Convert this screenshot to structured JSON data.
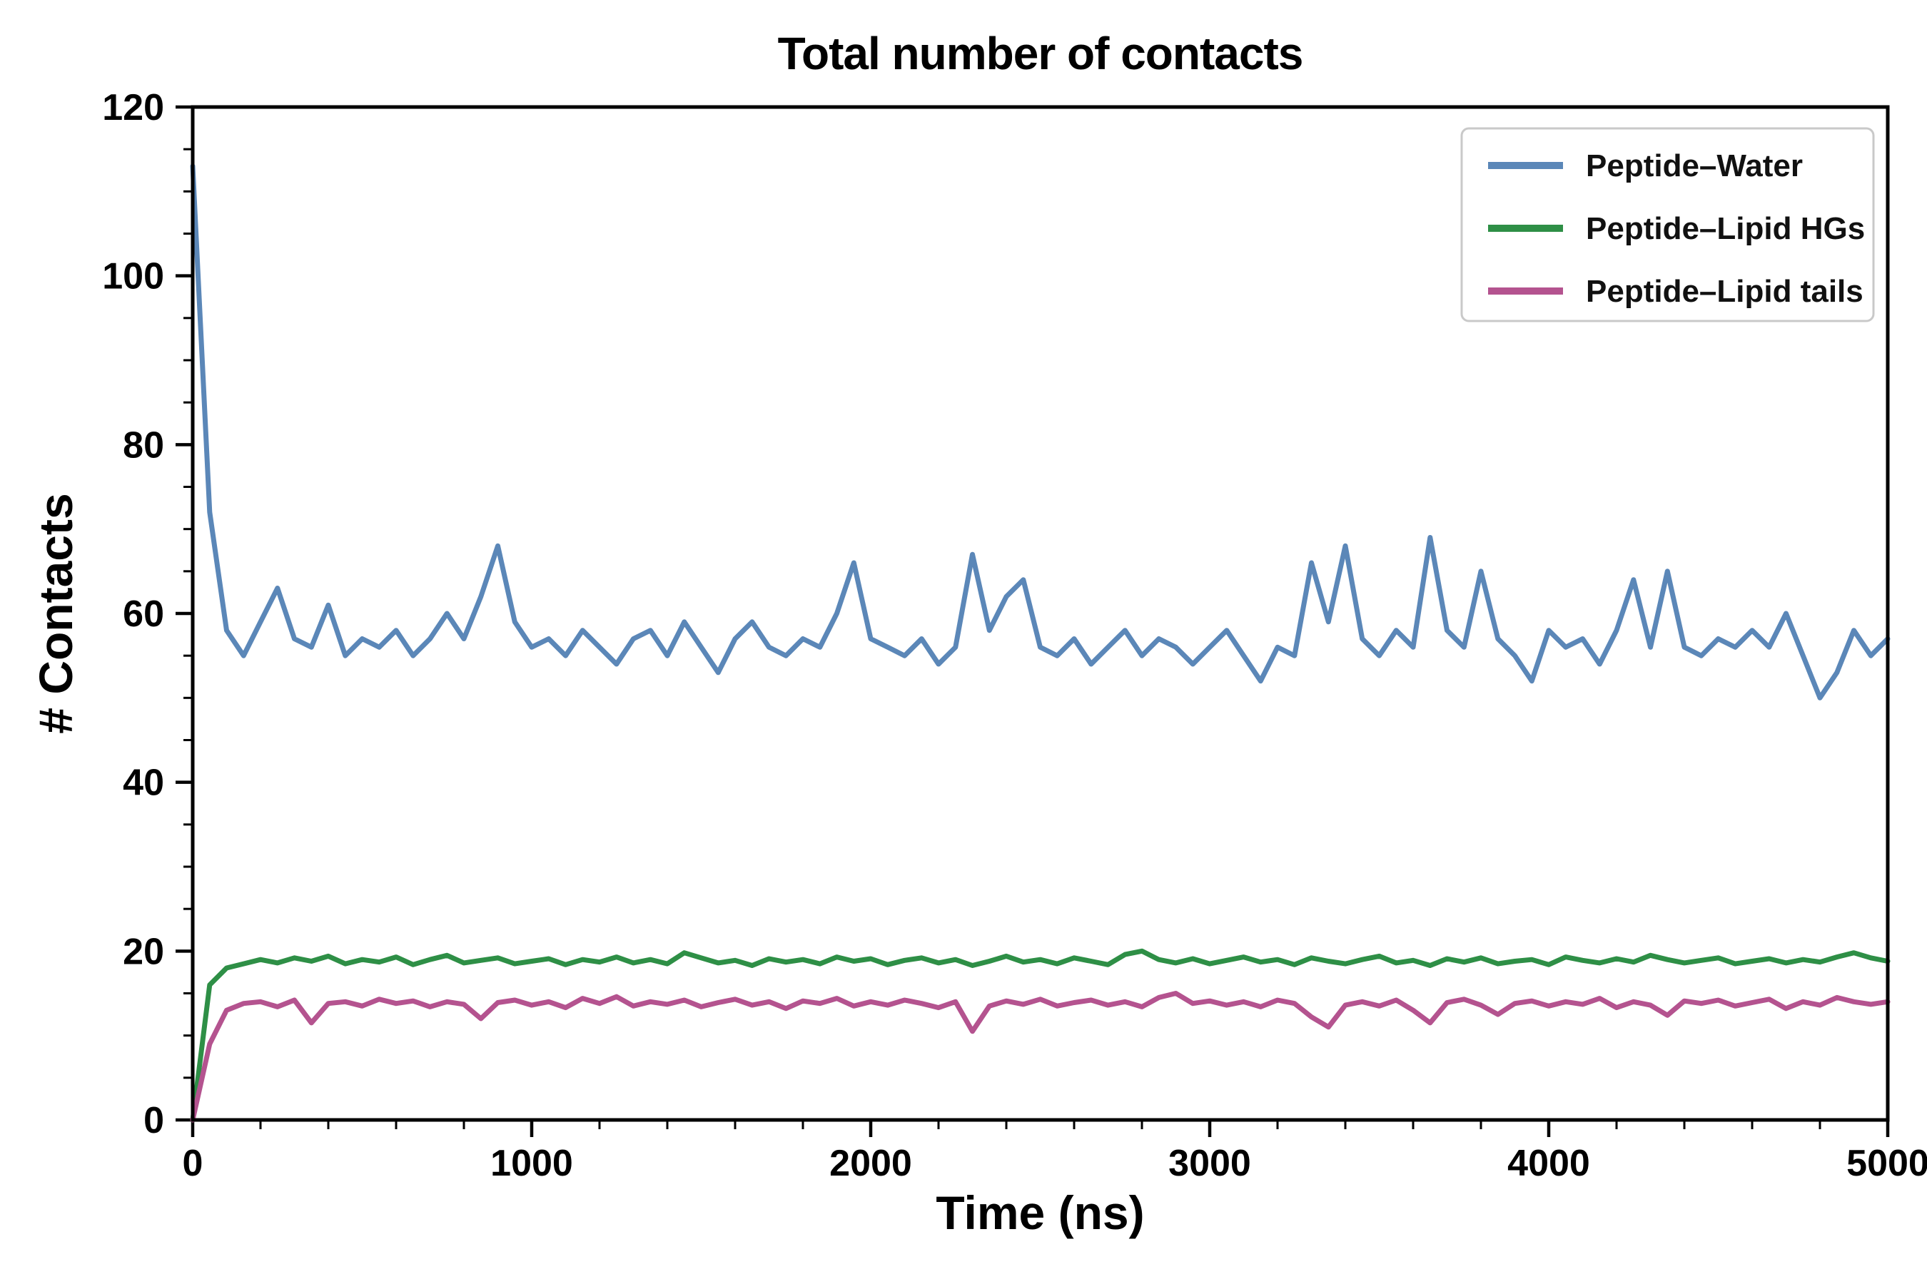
{
  "chart_data": {
    "type": "line",
    "title": "Total number of contacts",
    "xlabel": "Time (ns)",
    "ylabel": "# Contacts",
    "xlim": [
      0,
      5000
    ],
    "ylim": [
      0,
      120
    ],
    "x_ticks": [
      0,
      1000,
      2000,
      3000,
      4000,
      5000
    ],
    "y_ticks": [
      0,
      20,
      40,
      60,
      80,
      100,
      120
    ],
    "x_minor_step": 200,
    "y_minor_step": 5,
    "grid": false,
    "legend_position": "upper right",
    "x_step": 50,
    "axis_color": "#000000",
    "background_color": "#ffffff",
    "series": [
      {
        "name": "Peptide–Water",
        "color": "#5b87b8",
        "values": [
          113,
          72,
          58,
          55,
          59,
          63,
          57,
          56,
          61,
          55,
          57,
          56,
          58,
          55,
          57,
          60,
          57,
          62,
          68,
          59,
          56,
          57,
          55,
          58,
          56,
          54,
          57,
          58,
          55,
          59,
          56,
          53,
          57,
          59,
          56,
          55,
          57,
          56,
          60,
          66,
          57,
          56,
          55,
          57,
          54,
          56,
          67,
          58,
          62,
          64,
          56,
          55,
          57,
          54,
          56,
          58,
          55,
          57,
          56,
          54,
          56,
          58,
          55,
          52,
          56,
          55,
          66,
          59,
          68,
          57,
          55,
          58,
          56,
          69,
          58,
          56,
          65,
          57,
          55,
          52,
          58,
          56,
          57,
          54,
          58,
          64,
          56,
          65,
          56,
          55,
          57,
          56,
          58,
          56,
          60,
          55,
          50,
          53,
          58,
          55,
          57
        ]
      },
      {
        "name": "Peptide–Lipid HGs",
        "color": "#2e8f46",
        "values": [
          0,
          16,
          18,
          18.5,
          19,
          18.6,
          19.2,
          18.8,
          19.4,
          18.5,
          19,
          18.7,
          19.3,
          18.4,
          19,
          19.5,
          18.6,
          18.9,
          19.2,
          18.5,
          18.8,
          19.1,
          18.4,
          19,
          18.7,
          19.3,
          18.6,
          19,
          18.5,
          19.8,
          19.2,
          18.6,
          18.9,
          18.3,
          19.1,
          18.7,
          19,
          18.5,
          19.3,
          18.8,
          19.1,
          18.4,
          18.9,
          19.2,
          18.6,
          19,
          18.3,
          18.8,
          19.4,
          18.7,
          19,
          18.5,
          19.2,
          18.8,
          18.4,
          19.6,
          20,
          19,
          18.6,
          19.1,
          18.5,
          18.9,
          19.3,
          18.7,
          19,
          18.4,
          19.2,
          18.8,
          18.5,
          19,
          19.4,
          18.6,
          18.9,
          18.3,
          19.1,
          18.7,
          19.2,
          18.5,
          18.8,
          19,
          18.4,
          19.3,
          18.9,
          18.6,
          19.1,
          18.7,
          19.5,
          19,
          18.6,
          18.9,
          19.2,
          18.5,
          18.8,
          19.1,
          18.6,
          19,
          18.7,
          19.3,
          19.8,
          19.2,
          18.8
        ]
      },
      {
        "name": "Peptide–Lipid tails",
        "color": "#b4538f",
        "values": [
          0,
          9,
          13,
          13.8,
          14,
          13.4,
          14.2,
          11.5,
          13.8,
          14,
          13.5,
          14.3,
          13.8,
          14.1,
          13.4,
          14,
          13.7,
          12,
          13.9,
          14.2,
          13.6,
          14,
          13.3,
          14.4,
          13.8,
          14.6,
          13.5,
          14,
          13.7,
          14.2,
          13.4,
          13.9,
          14.3,
          13.6,
          14,
          13.2,
          14.1,
          13.8,
          14.4,
          13.5,
          14,
          13.6,
          14.2,
          13.8,
          13.3,
          14,
          10.5,
          13.5,
          14.1,
          13.7,
          14.3,
          13.5,
          13.9,
          14.2,
          13.6,
          14,
          13.4,
          14.5,
          15,
          13.8,
          14.1,
          13.6,
          14,
          13.4,
          14.2,
          13.8,
          12.2,
          11,
          13.6,
          14,
          13.5,
          14.2,
          13,
          11.5,
          13.9,
          14.3,
          13.6,
          12.5,
          13.8,
          14.1,
          13.5,
          14,
          13.7,
          14.4,
          13.3,
          14,
          13.6,
          12.4,
          14.1,
          13.8,
          14.2,
          13.5,
          13.9,
          14.3,
          13.2,
          14,
          13.6,
          14.5,
          14,
          13.7,
          14
        ]
      }
    ]
  }
}
